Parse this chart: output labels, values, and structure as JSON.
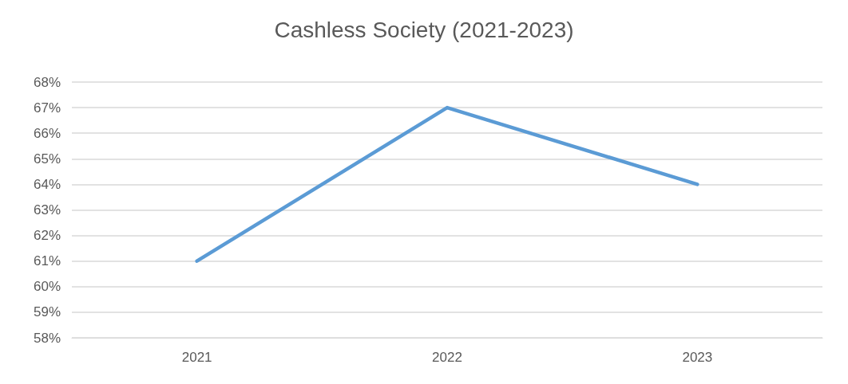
{
  "chart_data": {
    "type": "line",
    "title": "Cashless Society (2021-2023)",
    "categories": [
      "2021",
      "2022",
      "2023"
    ],
    "series": [
      {
        "color": "#5b9bd5",
        "values": [
          61,
          67,
          64
        ]
      }
    ],
    "ylim": [
      58,
      68
    ],
    "yticks": [
      {
        "value": 58,
        "label": "58%"
      },
      {
        "value": 59,
        "label": "59%"
      },
      {
        "value": 60,
        "label": "60%"
      },
      {
        "value": 61,
        "label": "61%"
      },
      {
        "value": 62,
        "label": "62%"
      },
      {
        "value": 63,
        "label": "63%"
      },
      {
        "value": 64,
        "label": "64%"
      },
      {
        "value": 65,
        "label": "65%"
      },
      {
        "value": 66,
        "label": "66%"
      },
      {
        "value": 67,
        "label": "67%"
      },
      {
        "value": 68,
        "label": "68%"
      }
    ],
    "grid": "y",
    "marker": "none",
    "line_style": "solid"
  }
}
